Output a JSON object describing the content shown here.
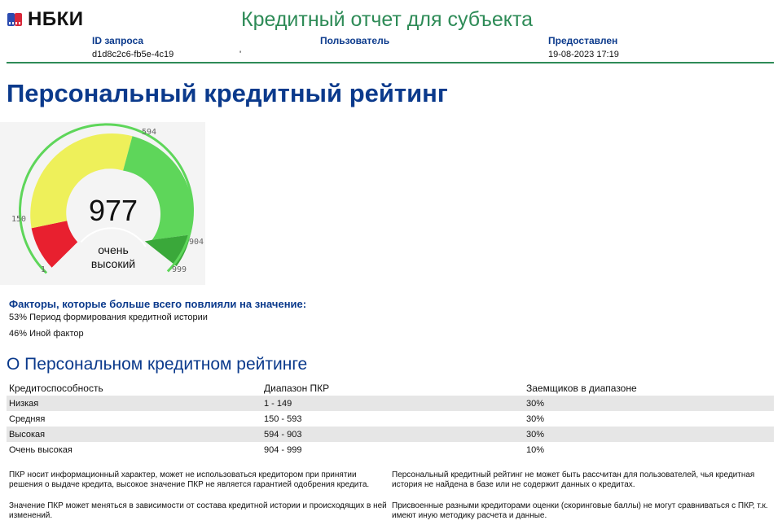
{
  "header": {
    "logo_text": "НБКИ",
    "report_title": "Кредитный отчет для субъекта",
    "fields": [
      {
        "label": "ID запроса",
        "value": "d1d8c2c6-fb5e-4c19-8"
      },
      {
        "label": "Пользователь",
        "value": "'"
      },
      {
        "label": "Предоставлен",
        "value": "19-08-2023 17:19"
      }
    ]
  },
  "rating": {
    "title": "Персональный кредитный рейтинг",
    "score": "977",
    "score_label_line1": "очень",
    "score_label_line2": "высокий",
    "score_value": 977,
    "scale_min": 1,
    "scale_max": 999,
    "ticks": [
      "1",
      "150",
      "594",
      "904",
      "999"
    ],
    "colors": {
      "red": "#e8202f",
      "yellow": "#eef05a",
      "green": "#5ed65a",
      "dark_green": "#3aa83a"
    }
  },
  "factors": {
    "title": "Факторы, которые больше всего повлияли на значение:",
    "items": [
      "53% Период формирования кредитной истории",
      "46% Иной фактор"
    ]
  },
  "about": {
    "title": "О Персональном кредитном рейтинге",
    "columns": [
      "Кредитоспособность",
      "Диапазон ПКР",
      "Заемщиков в диапазоне"
    ],
    "rows": [
      [
        "Низкая",
        "1 - 149",
        "30%"
      ],
      [
        "Средняя",
        "150 - 593",
        "30%"
      ],
      [
        "Высокая",
        "594 - 903",
        "30%"
      ],
      [
        "Очень высокая",
        "904 - 999",
        "10%"
      ]
    ]
  },
  "notes": [
    "ПКР носит информационный характер, может не использоваться кредитором при принятии решения о выдаче кредита, высокое значение ПКР не является гарантией одобрения кредита.",
    "Персональный кредитный рейтинг не может быть рассчитан для пользователей, чья кредитная история не найдена в базе или не содержит данных о кредитах.",
    "Значение ПКР может меняться в зависимости от состава кредитной истории и происходящих в ней изменений.",
    "Присвоенные разными кредиторами оценки (скоринговые баллы) не могут сравниваться с ПКР, т.к. имеют иную методику расчета и данные."
  ]
}
